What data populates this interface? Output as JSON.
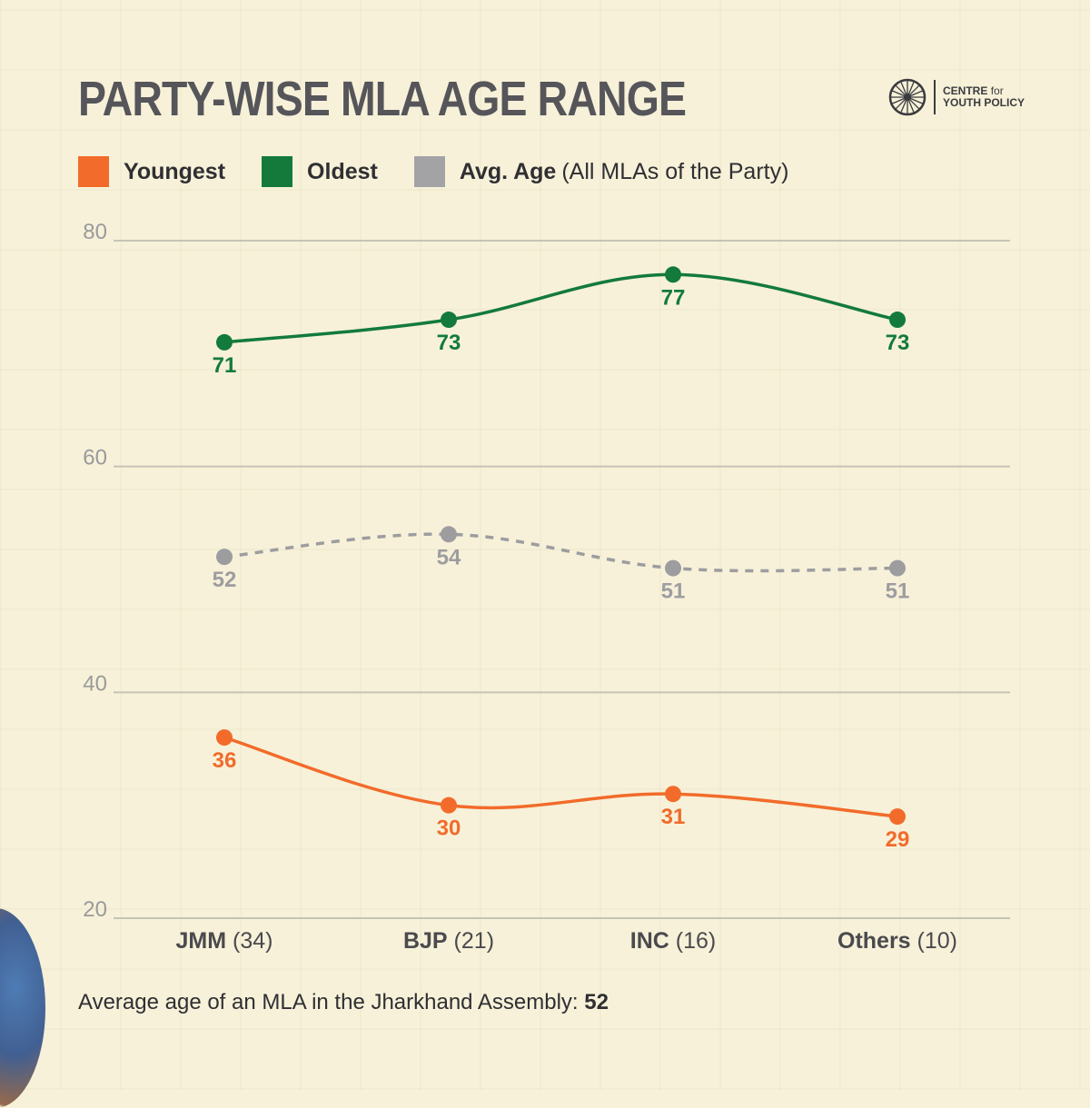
{
  "title": "PARTY-WISE MLA AGE RANGE",
  "logo": {
    "line1": "CENTRE",
    "line1_suffix": "for",
    "line2": "YOUTH POLICY",
    "icon": "ashoka-chakra-icon"
  },
  "legend": [
    {
      "label": "Youngest",
      "note": "",
      "color": "#f26b2a"
    },
    {
      "label": "Oldest",
      "note": "",
      "color": "#137a3c"
    },
    {
      "label": "Avg. Age",
      "note": "(All MLAs of the Party)",
      "color": "#a3a3a6"
    }
  ],
  "chart_data": {
    "type": "line",
    "categories": [
      {
        "party": "JMM",
        "count": "(34)"
      },
      {
        "party": "BJP",
        "count": "(21)"
      },
      {
        "party": "INC",
        "count": "(16)"
      },
      {
        "party": "Others",
        "count": "(10)"
      }
    ],
    "series": [
      {
        "name": "Oldest",
        "values": [
          71,
          73,
          77,
          73
        ],
        "color": "#137a3c",
        "style": "solid",
        "label_position": "below"
      },
      {
        "name": "Avg. Age",
        "values": [
          52,
          54,
          51,
          51
        ],
        "color": "#9d9da0",
        "style": "dashed",
        "label_position": "below"
      },
      {
        "name": "Youngest",
        "values": [
          36,
          30,
          31,
          29
        ],
        "color": "#f26b2a",
        "style": "solid",
        "label_position": "below"
      }
    ],
    "y_ticks": [
      80,
      60,
      40,
      20
    ],
    "ylim": [
      20,
      80
    ],
    "grid": true
  },
  "footer": {
    "text": "Average age of an MLA in the Jharkhand Assembly:",
    "value": "52"
  }
}
